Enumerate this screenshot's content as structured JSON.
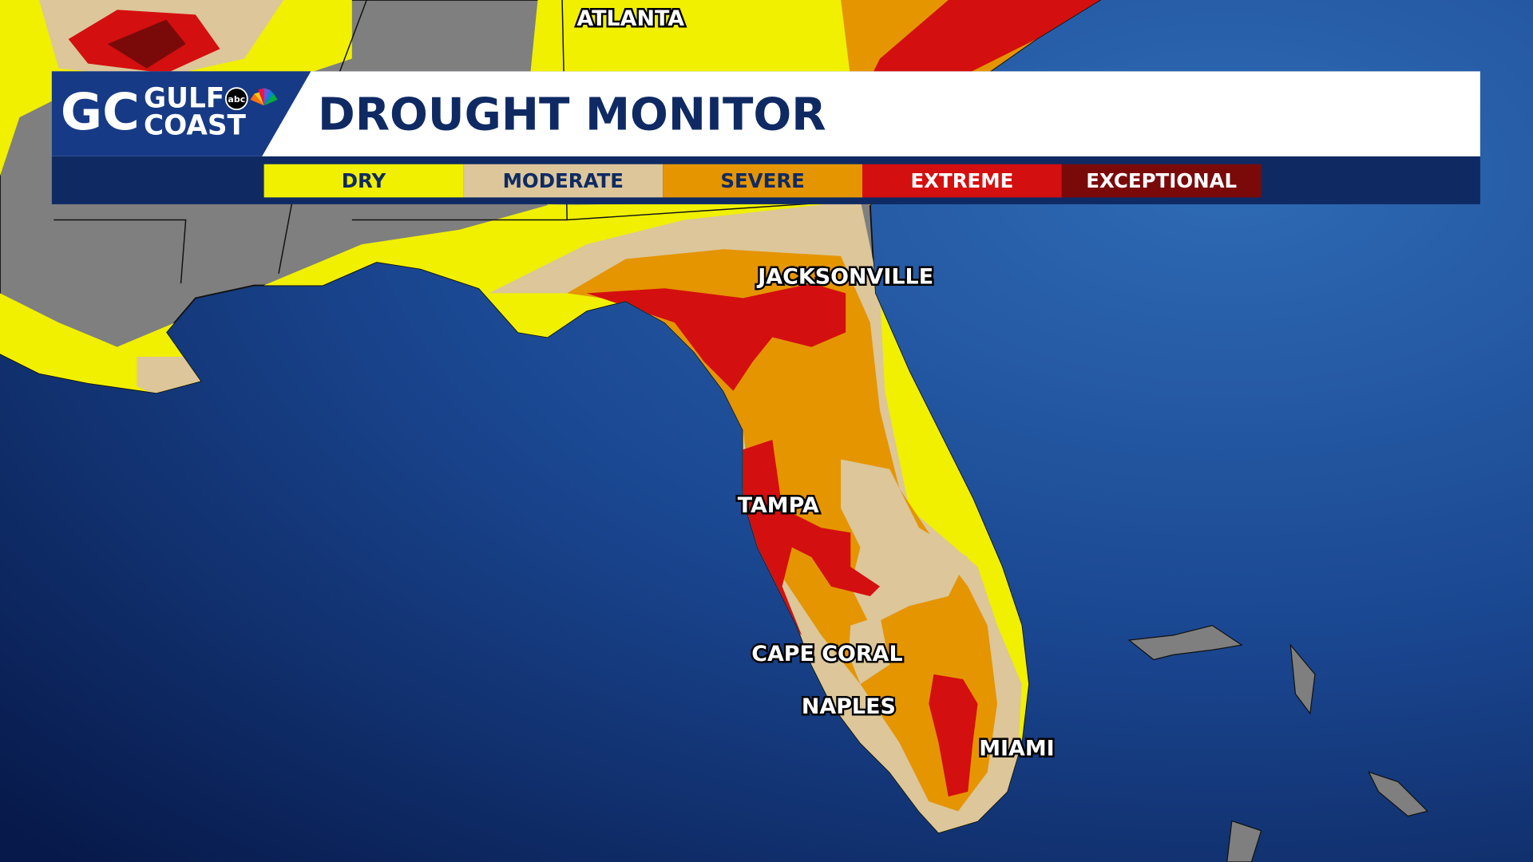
{
  "header": {
    "logo": {
      "line1": "GULF",
      "line2": "COAST",
      "network": "abc"
    },
    "title": "DROUGHT MONITOR"
  },
  "legend": [
    {
      "label": "DRY",
      "color": "#f0f000"
    },
    {
      "label": "MODERATE",
      "color": "#dcc69a"
    },
    {
      "label": "SEVERE",
      "color": "#e59500"
    },
    {
      "label": "EXTREME",
      "color": "#d40f0f"
    },
    {
      "label": "EXCEPTIONAL",
      "color": "#7a0a0a"
    }
  ],
  "cities": [
    {
      "label": "ATLANTA"
    },
    {
      "label": "JACKSONVILLE"
    },
    {
      "label": "TAMPA"
    },
    {
      "label": "CAPE CORAL"
    },
    {
      "label": "NAPLES"
    },
    {
      "label": "MIAMI"
    }
  ]
}
